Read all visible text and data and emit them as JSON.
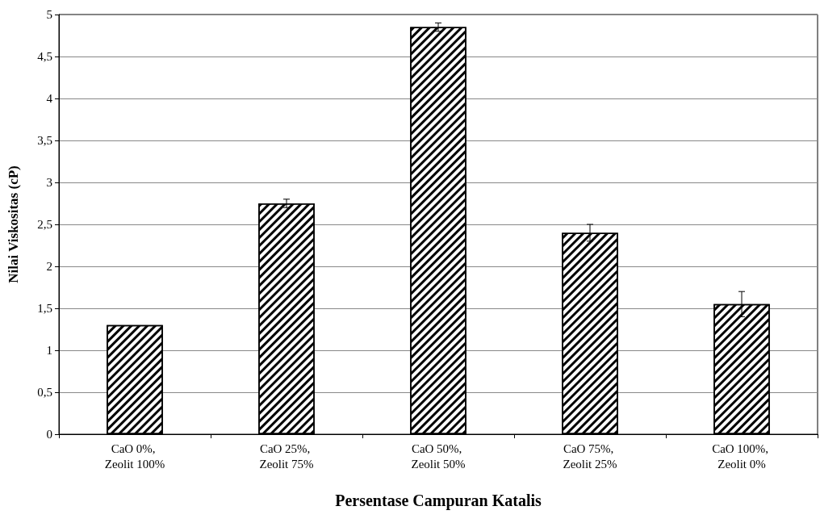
{
  "chart_data": {
    "type": "bar",
    "xlabel": "Persentase Campuran Katalis",
    "ylabel": "Nilai Viskositas (cP)",
    "categories": [
      "CaO 0%, Zeolit 100%",
      "CaO 25%, Zeolit 75%",
      "CaO 50%, Zeolit 50%",
      "CaO 75%, Zeolit 25%",
      "CaO 100%, Zeolit 0%"
    ],
    "values": [
      1.3,
      2.75,
      4.85,
      2.4,
      1.55
    ],
    "errors": [
      null,
      0.05,
      0.05,
      0.1,
      0.15
    ],
    "color": "#000000",
    "ylim": [
      0,
      5
    ],
    "yticks": [
      0,
      {
        "value": 0.5,
        "label": "0,5"
      },
      1,
      {
        "value": 1.5,
        "label": "1,5"
      },
      2,
      {
        "value": 2.5,
        "label": "2,5"
      },
      3,
      {
        "value": 3.5,
        "label": "3,5"
      },
      4,
      {
        "value": 4.5,
        "label": "4,5"
      },
      5
    ],
    "grid": "y"
  }
}
